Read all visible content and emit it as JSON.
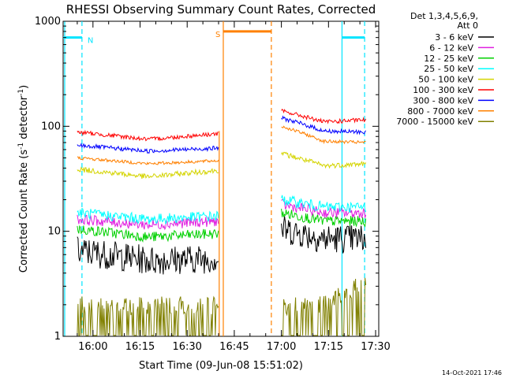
{
  "chart_data": {
    "type": "line",
    "title": "RHESSI Observing Summary Count Rates, Corrected",
    "xlabel": "Start Time (09-Jun-08 15:51:02)",
    "ylabel_main": "Corrected Count Rate (s",
    "ylabel_sup1": "-1",
    "ylabel_mid": " detector",
    "ylabel_sup2": "-1",
    "ylabel_end": ")",
    "y_scale": "log",
    "ylim": [
      1,
      1000
    ],
    "x_start_minutes": [
      950.5,
      1051.0
    ],
    "x_ticks": [
      {
        "minute": 960,
        "label": "16:00"
      },
      {
        "minute": 975,
        "label": "16:15"
      },
      {
        "minute": 990,
        "label": "16:30"
      },
      {
        "minute": 1005,
        "label": "16:45"
      },
      {
        "minute": 1020,
        "label": "17:00"
      },
      {
        "minute": 1035,
        "label": "17:15"
      },
      {
        "minute": 1050,
        "label": "17:30"
      }
    ],
    "y_ticks": [
      {
        "value": 1,
        "label": "1"
      },
      {
        "value": 10,
        "label": "10"
      },
      {
        "value": 100,
        "label": "100"
      },
      {
        "value": 1000,
        "label": "1000"
      }
    ],
    "legend_header": [
      "Det 1,3,4,5,6,9,",
      "Att 0"
    ],
    "legend_position": "right",
    "timestamp": "14-Oct-2021 17:46",
    "grid": false,
    "segments": [
      [
        955,
        1000
      ],
      [
        1020,
        1047
      ]
    ],
    "series": [
      {
        "name": "3 - 6 keV",
        "color": "#000000",
        "gap1": [
          6.5,
          5.3,
          5.5
        ],
        "gap2": [
          10.5,
          8.5,
          8.5
        ],
        "noise": 0.14
      },
      {
        "name": "6 - 12 keV",
        "color": "#e020e0",
        "gap1": [
          13,
          11.5,
          12.5
        ],
        "gap2": [
          18,
          15,
          15
        ],
        "noise": 0.05
      },
      {
        "name": "12 - 25 keV",
        "color": "#00d000",
        "gap1": [
          10.5,
          8.8,
          9.5
        ],
        "gap2": [
          15,
          12.5,
          12.5
        ],
        "noise": 0.05
      },
      {
        "name": "25 - 50 keV",
        "color": "#00ffff",
        "gap1": [
          15,
          13,
          14
        ],
        "gap2": [
          20,
          17,
          17
        ],
        "noise": 0.05
      },
      {
        "name": "50 - 100 keV",
        "color": "#d4d400",
        "gap1": [
          39,
          33,
          38
        ],
        "gap2": [
          55,
          42,
          44
        ],
        "noise": 0.025
      },
      {
        "name": "100 - 300 keV",
        "color": "#ff0000",
        "gap1": [
          88,
          75,
          85
        ],
        "gap2": [
          140,
          110,
          115
        ],
        "noise": 0.02
      },
      {
        "name": "300 - 800 keV",
        "color": "#0000ff",
        "gap1": [
          66,
          58,
          62
        ],
        "gap2": [
          120,
          90,
          88
        ],
        "noise": 0.02
      },
      {
        "name": "800 - 7000 keV",
        "color": "#ff8000",
        "gap1": [
          50,
          44,
          47
        ],
        "gap2": [
          100,
          72,
          70
        ],
        "noise": 0.015
      },
      {
        "name": "7000 - 15000 keV",
        "color": "#808000",
        "gap1": [
          1.6,
          1.6,
          1.6
        ],
        "gap2": [
          1.6,
          1.6,
          2.6
        ],
        "noise": 0.0
      }
    ],
    "flags": [
      {
        "name": "Night",
        "label": "N",
        "color": "#00e5ff",
        "level": 700,
        "intervals": [
          [
            950.5,
            956.5
          ],
          [
            1039.3,
            1046.5
          ]
        ],
        "boundaries": [
          {
            "minute": 951,
            "style": "solid"
          },
          {
            "minute": 956.5,
            "style": "dashed"
          },
          {
            "minute": 1039.3,
            "style": "solid"
          },
          {
            "minute": 1046.5,
            "style": "dashed"
          }
        ]
      },
      {
        "name": "SAA",
        "label": "S",
        "color": "#ff8000",
        "level": 800,
        "intervals": [
          [
            1001.5,
            1016.8
          ]
        ],
        "boundaries": [
          {
            "minute": 1001.5,
            "style": "solid"
          },
          {
            "minute": 1016.8,
            "style": "dashed"
          }
        ]
      }
    ],
    "spike": {
      "minute": 1000.2,
      "from": 1,
      "to": 90,
      "color": "#ff8000"
    }
  }
}
